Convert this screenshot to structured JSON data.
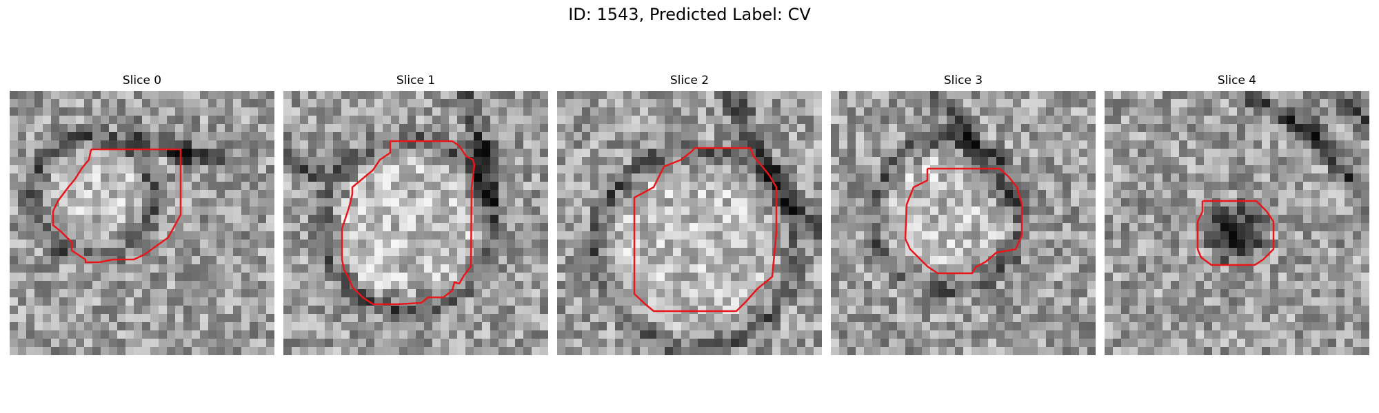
{
  "figure": {
    "title": "ID: 1543, Predicted Label: CV",
    "contour_color": "#e8161b"
  },
  "panels": [
    {
      "title": "Slice 0",
      "feature": "light"
    },
    {
      "title": "Slice 1",
      "feature": "light"
    },
    {
      "title": "Slice 2",
      "feature": "light"
    },
    {
      "title": "Slice 3",
      "feature": "light"
    },
    {
      "title": "Slice 4",
      "feature": "dark"
    }
  ]
}
